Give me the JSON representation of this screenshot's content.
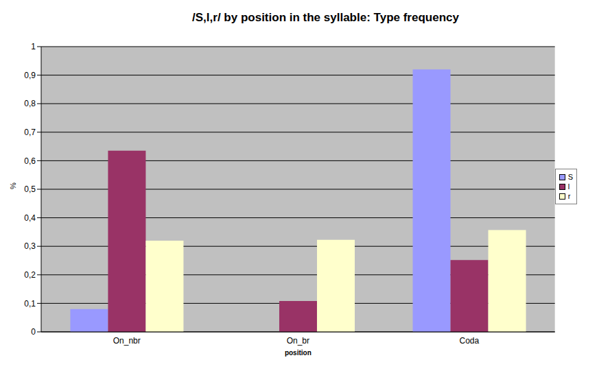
{
  "chart_data": {
    "type": "bar",
    "title": "/S,l,r/ by position in the syllable: Type frequency",
    "x_label": "position",
    "y_label": "%",
    "categories": [
      "On_nbr",
      "On_br",
      "Coda"
    ],
    "series": [
      {
        "name": "S",
        "color": "#9999FF",
        "values": [
          0.08,
          0,
          0.92
        ]
      },
      {
        "name": "l",
        "color": "#993366",
        "values": [
          0.635,
          0.108,
          0.252
        ]
      },
      {
        "name": "r",
        "color": "#FFFFCC",
        "values": [
          0.32,
          0.323,
          0.357
        ]
      }
    ],
    "ylim": [
      0,
      1
    ],
    "yticks": [
      0,
      {
        "value": 0.1,
        "label": "0,1"
      },
      {
        "value": 0.2,
        "label": "0,2"
      },
      {
        "value": 0.3,
        "label": "0,3"
      },
      {
        "value": 0.4,
        "label": "0,4"
      },
      {
        "value": 0.5,
        "label": "0,5"
      },
      {
        "value": 0.6,
        "label": "0,6"
      },
      {
        "value": 0.7,
        "label": "0,7"
      },
      {
        "value": 0.8,
        "label": "0,8"
      },
      {
        "value": 0.9,
        "label": "0,9"
      },
      1
    ],
    "grid": true,
    "legend": "right"
  }
}
